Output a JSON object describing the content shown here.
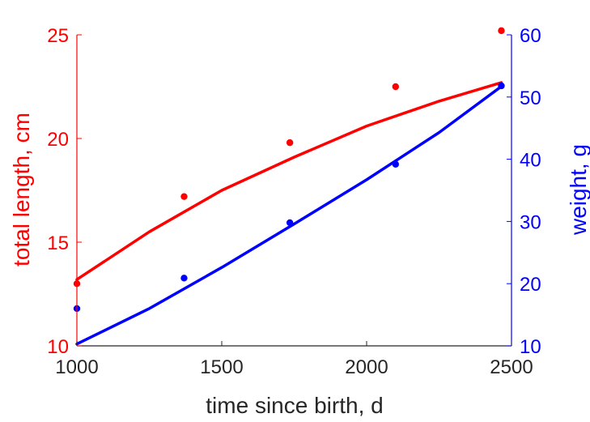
{
  "chart_data": {
    "type": "scatter",
    "title": "",
    "xlabel": "time since birth, d",
    "xlim": [
      1000,
      2500
    ],
    "xticks": [
      1000,
      1500,
      2000,
      2500
    ],
    "left_axis": {
      "label": "total length, cm",
      "color": "#ff0000",
      "ylim": [
        10,
        25
      ],
      "ticks": [
        10,
        15,
        20,
        25
      ]
    },
    "right_axis": {
      "label": "weight, g",
      "color": "#0000ff",
      "ylim": [
        10,
        60
      ],
      "ticks": [
        10,
        20,
        30,
        40,
        50,
        60
      ]
    },
    "series": [
      {
        "axis": "left",
        "color": "#ff0000",
        "points": {
          "x": [
            1000,
            1370,
            1735,
            2100,
            2465
          ],
          "y": [
            13.0,
            17.2,
            19.8,
            22.5,
            25.2
          ]
        },
        "fit": {
          "x": [
            1000,
            1250,
            1500,
            1750,
            2000,
            2250,
            2465
          ],
          "y": [
            13.2,
            15.5,
            17.5,
            19.1,
            20.6,
            21.8,
            22.7
          ]
        }
      },
      {
        "axis": "right",
        "color": "#0000ff",
        "points": {
          "x": [
            1000,
            1370,
            1735,
            2100,
            2465
          ],
          "y": [
            16.0,
            20.9,
            29.8,
            39.2,
            51.8
          ]
        },
        "fit": {
          "x": [
            1000,
            1250,
            1500,
            1750,
            2000,
            2250,
            2465
          ],
          "y": [
            10.3,
            16.0,
            22.6,
            29.6,
            36.7,
            44.3,
            51.7
          ]
        }
      }
    ],
    "grid": false,
    "legend": "none"
  }
}
